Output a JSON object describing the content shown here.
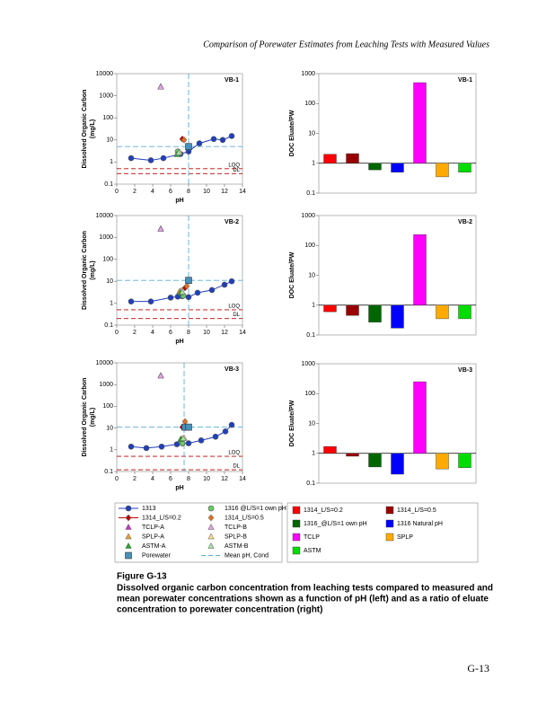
{
  "header": "Comparison of Porewater Estimates from Leaching Tests with Measured Values",
  "chart_data": [
    {
      "type": "scatter",
      "label": "VB-1",
      "xlabel": "pH",
      "ylabel": [
        "Dissolved Organic Carbon",
        "(mg/L)"
      ],
      "xlim": [
        0,
        14
      ],
      "xticks": [
        0,
        2,
        4,
        6,
        8,
        10,
        12,
        14
      ],
      "ylim": [
        0.1,
        10000
      ],
      "yticks": [
        0.1,
        1,
        10,
        100,
        1000,
        10000
      ],
      "log_y": true,
      "series": [
        {
          "x": [
            1.6,
            3.8,
            5.2,
            7.1,
            8.0,
            9.2,
            10.8,
            11.8,
            12.8
          ],
          "values": [
            1.5,
            1.2,
            1.5,
            2.3,
            3,
            7,
            11,
            10,
            15
          ]
        },
        {
          "x": [
            6.8
          ],
          "values": [
            3
          ]
        },
        {
          "x": [
            7.3
          ],
          "values": [
            11
          ]
        },
        {
          "x": [
            7.5
          ],
          "values": [
            10
          ]
        },
        {
          "x": [
            4.9
          ],
          "values": [
            2600
          ]
        },
        {
          "x": [
            4.9
          ],
          "values": [
            2500
          ]
        },
        {
          "x": [
            6.9
          ],
          "values": [
            2.5
          ]
        },
        {
          "x": [
            7.0
          ],
          "values": [
            2.8
          ]
        },
        {
          "x": [
            6.7
          ],
          "values": [
            2.2
          ]
        },
        {
          "x": [
            6.9
          ],
          "values": [
            2.6
          ]
        },
        {
          "x": [
            8.0
          ],
          "values": [
            5
          ]
        }
      ],
      "mean_x": 8.0,
      "mean_y": 5,
      "ref_color": "#c00000",
      "ref_lines": [
        {
          "label": "LOQ",
          "value": 0.5
        },
        {
          "label": "DL",
          "value": 0.3
        }
      ]
    },
    {
      "type": "bar",
      "label": "VB-1",
      "ylabel": "DOC Eluate/PW",
      "categories": [
        null,
        null,
        null,
        null,
        null,
        null,
        null
      ],
      "values": [
        2,
        2.1,
        0.6,
        0.5,
        500,
        0.35,
        0.5
      ],
      "ylim": [
        0.1,
        1000
      ],
      "yticks": [
        0.1,
        1,
        10,
        100,
        1000
      ],
      "log_y": true
    },
    {
      "type": "scatter",
      "label": "VB-2",
      "xlabel": "pH",
      "ylabel": [
        "Dissolved Organic Carbon",
        "(mg/L)"
      ],
      "xlim": [
        0,
        14
      ],
      "xticks": [
        0,
        2,
        4,
        6,
        8,
        10,
        12,
        14
      ],
      "ylim": [
        0.1,
        10000
      ],
      "yticks": [
        0.1,
        1,
        10,
        100,
        1000,
        10000
      ],
      "log_y": true,
      "series": [
        {
          "x": [
            1.6,
            3.8,
            6.0,
            6.8,
            7.3,
            8.0,
            9.0,
            10.6,
            12.0,
            12.8
          ],
          "values": [
            1.2,
            1.2,
            1.8,
            2,
            2.1,
            1.9,
            3,
            4,
            7,
            10
          ]
        },
        {
          "x": [
            7.4
          ],
          "values": [
            2.2
          ]
        },
        {
          "x": [
            7.6
          ],
          "values": [
            5
          ]
        },
        {
          "x": [
            7.8
          ],
          "values": [
            6
          ]
        },
        {
          "x": [
            4.9
          ],
          "values": [
            2500
          ]
        },
        {
          "x": [
            4.9
          ],
          "values": [
            2400
          ]
        },
        {
          "x": [
            7.0
          ],
          "values": [
            3.5
          ]
        },
        {
          "x": [
            7.2
          ],
          "values": [
            3.8
          ]
        },
        {
          "x": [
            7.1
          ],
          "values": [
            3
          ]
        },
        {
          "x": [
            7.3
          ],
          "values": [
            3.2
          ]
        },
        {
          "x": [
            8.0
          ],
          "values": [
            11
          ]
        }
      ],
      "mean_x": 8.0,
      "mean_y": 11,
      "ref_color": "#c00000",
      "ref_lines": [
        {
          "label": "LOQ",
          "value": 0.5
        },
        {
          "label": "DL",
          "value": 0.2
        }
      ]
    },
    {
      "type": "bar",
      "label": "VB-2",
      "ylabel": "DOC Eluate/PW",
      "categories": [
        null,
        null,
        null,
        null,
        null,
        null,
        null
      ],
      "values": [
        0.6,
        0.45,
        0.27,
        0.17,
        230,
        0.35,
        0.35
      ],
      "ylim": [
        0.1,
        1000
      ],
      "yticks": [
        0.1,
        1,
        10,
        100,
        1000
      ],
      "log_y": true
    },
    {
      "type": "scatter",
      "label": "VB-3",
      "xlabel": "pH",
      "ylabel": [
        "Dissolved Organic Carbon",
        "(mg/L)"
      ],
      "xlim": [
        0,
        14
      ],
      "xticks": [
        0,
        2,
        4,
        6,
        8,
        10,
        12,
        14
      ],
      "ylim": [
        0.1,
        10000
      ],
      "yticks": [
        0.1,
        1,
        10,
        100,
        1000,
        10000
      ],
      "log_y": true,
      "series": [
        {
          "x": [
            1.6,
            3.3,
            5.0,
            6.7,
            7.3,
            8.0,
            9.4,
            11,
            12.1,
            12.8
          ],
          "values": [
            1.4,
            1.2,
            1.4,
            1.8,
            2,
            2,
            2.7,
            4,
            7,
            14
          ]
        },
        {
          "x": [
            7.3
          ],
          "values": [
            2
          ]
        },
        {
          "x": [
            7.3
          ],
          "values": [
            11
          ]
        },
        {
          "x": [
            7.6
          ],
          "values": [
            20
          ]
        },
        {
          "x": [
            4.9
          ],
          "values": [
            2600
          ]
        },
        {
          "x": [
            4.9
          ],
          "values": [
            2500
          ]
        },
        {
          "x": [
            7.2
          ],
          "values": [
            3.2
          ]
        },
        {
          "x": [
            7.5
          ],
          "values": [
            3.5
          ]
        },
        {
          "x": [
            7.1
          ],
          "values": [
            3
          ]
        },
        {
          "x": [
            7.4
          ],
          "values": [
            3.3
          ]
        },
        {
          "x": [
            7.6,
            8.0
          ],
          "values": [
            11,
            11
          ]
        }
      ],
      "mean_x": 7.5,
      "mean_y": 11,
      "ref_color": "#c00000",
      "ref_lines": [
        {
          "label": "LOQ",
          "value": 0.5
        },
        {
          "label": "DL",
          "value": 0.12
        }
      ]
    },
    {
      "type": "bar",
      "label": "VB-3",
      "ylabel": "DOC Eluate/PW",
      "categories": [
        null,
        null,
        null,
        null,
        null,
        null,
        null
      ],
      "values": [
        1.7,
        0.8,
        0.35,
        0.2,
        250,
        0.3,
        0.33
      ],
      "ylim": [
        0.1,
        1000
      ],
      "yticks": [
        0.1,
        1,
        10,
        100,
        1000
      ],
      "log_y": true
    }
  ],
  "legend_left": [
    {
      "name": "1313",
      "color": "#1f3fbf",
      "marker": "line-circle"
    },
    {
      "name": "1316 @L/S=1 own pH",
      "color": "#66cc66",
      "marker": "circle"
    },
    {
      "name": "1314_L/S=0.2",
      "color": "#c00000",
      "marker": "line-diamond"
    },
    {
      "name": "1314_L/S=0.5",
      "color": "#e07020",
      "marker": "diamond"
    },
    {
      "name": "TCLP-A",
      "color": "#cc33cc",
      "marker": "triangle"
    },
    {
      "name": "TCLP-B",
      "color": "#e6a0e6",
      "marker": "triangle"
    },
    {
      "name": "SPLP-A",
      "color": "#f0a030",
      "marker": "triangle"
    },
    {
      "name": "SPLP-B",
      "color": "#ffd890",
      "marker": "triangle"
    },
    {
      "name": "ASTM-A",
      "color": "#22aa22",
      "marker": "triangle"
    },
    {
      "name": "ASTM-B",
      "color": "#a8e0a8",
      "marker": "triangle"
    },
    {
      "name": "Porewater",
      "color": "#4a90b8",
      "marker": "square"
    },
    {
      "name": "Mean pH, Cond",
      "color": "#5aaed8",
      "marker": "dashed"
    }
  ],
  "legend_right": [
    {
      "name": "1314_L/S=0.2",
      "color": "#ff0000"
    },
    {
      "name": "1314_L/S=0.5",
      "color": "#990000"
    },
    {
      "name": "1316_@L/S=1 own pH",
      "color": "#006600"
    },
    {
      "name": "1316 Natural pH",
      "color": "#0000ff"
    },
    {
      "name": "TCLP",
      "color": "#ff00ff"
    },
    {
      "name": "SPLP",
      "color": "#ffaa00"
    },
    {
      "name": "ASTM",
      "color": "#00dd00"
    }
  ],
  "caption": {
    "figure": "Figure G-13",
    "lines": [
      "Dissolved organic carbon concentration from leaching tests compared to measured and",
      "mean porewater concentrations shown as a function of pH (left) and as a ratio of eluate",
      "concentration to porewater concentration (right)"
    ]
  },
  "page_number": "G-13"
}
